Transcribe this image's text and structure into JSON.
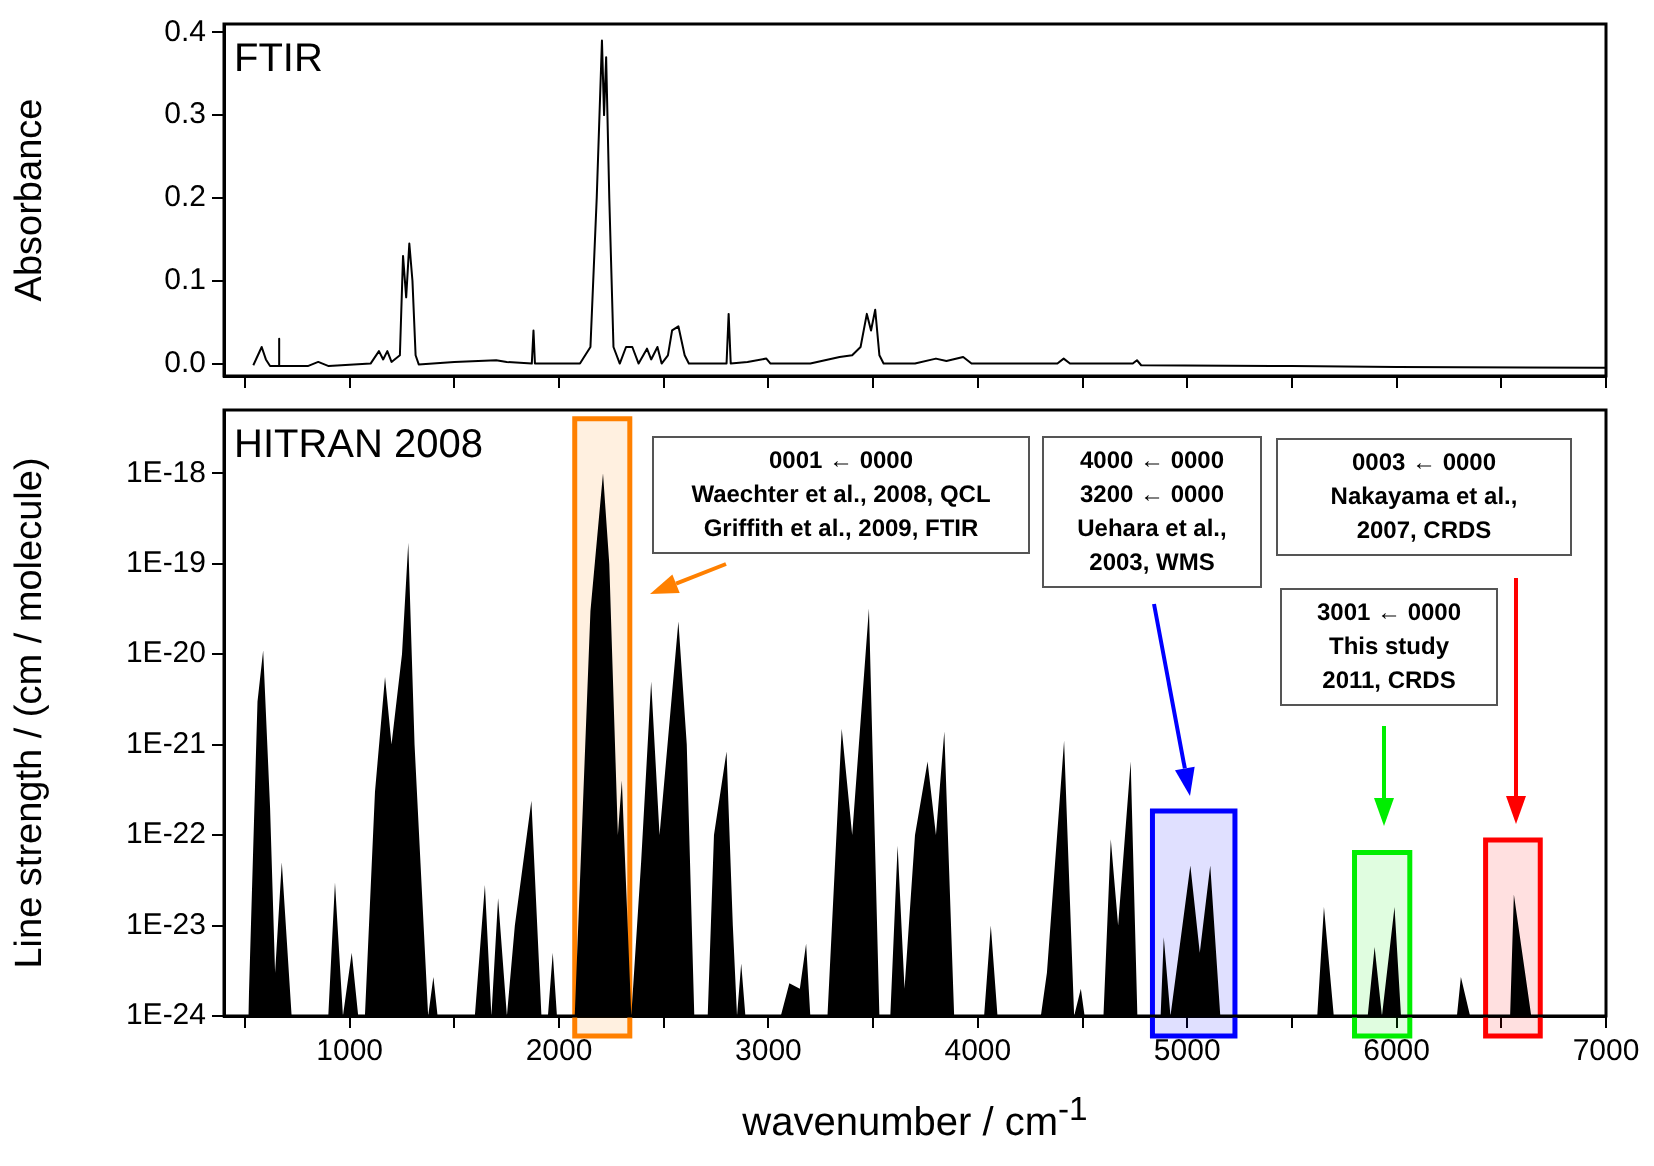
{
  "chart_data": [
    {
      "type": "line",
      "title": "FTIR",
      "ylabel": "Absorbance",
      "color": "#000000",
      "tick_labels": "y",
      "xlim": [
        400,
        7000
      ],
      "xticks": [
        {
          "value": 500,
          "label": null
        },
        1000,
        {
          "value": 1500,
          "label": null
        },
        2000,
        {
          "value": 2500,
          "label": null
        },
        3000,
        {
          "value": 3500,
          "label": null
        },
        4000,
        {
          "value": 4500,
          "label": null
        },
        5000,
        {
          "value": 5500,
          "label": null
        },
        6000,
        {
          "value": 6500,
          "label": null
        },
        7000
      ],
      "ylim": [
        -0.015,
        0.41
      ],
      "yticks": [
        {
          "value": 0,
          "label": "0.0"
        },
        0.1,
        0.2,
        0.3,
        0.4
      ],
      "x": [
        540,
        580,
        600,
        620,
        660,
        662,
        665,
        800,
        850,
        900,
        1100,
        1140,
        1160,
        1180,
        1200,
        1240,
        1255,
        1270,
        1285,
        1300,
        1315,
        1330,
        1500,
        1700,
        1750,
        1870,
        1878,
        1885,
        2100,
        2150,
        2180,
        2205,
        2215,
        2225,
        2240,
        2260,
        2290,
        2320,
        2350,
        2380,
        2420,
        2440,
        2470,
        2490,
        2520,
        2540,
        2570,
        2600,
        2620,
        2800,
        2810,
        2820,
        2900,
        2990,
        3010,
        3200,
        3340,
        3400,
        3440,
        3470,
        3490,
        3510,
        3530,
        3550,
        3700,
        3800,
        3850,
        3930,
        3970,
        4380,
        4410,
        4440,
        4740,
        4760,
        4780,
        5500,
        6000,
        7000
      ],
      "values": [
        -0.002,
        0.02,
        0.005,
        -0.003,
        -0.003,
        0.03,
        -0.003,
        -0.003,
        0.002,
        -0.003,
        0.0,
        0.015,
        0.005,
        0.015,
        0.002,
        0.01,
        0.13,
        0.08,
        0.145,
        0.1,
        0.01,
        -0.001,
        0.002,
        0.004,
        0.002,
        0.0,
        0.04,
        0.0,
        0.0,
        0.02,
        0.2,
        0.39,
        0.3,
        0.37,
        0.2,
        0.02,
        0.0,
        0.02,
        0.02,
        0.0,
        0.018,
        0.005,
        0.02,
        0.0,
        0.01,
        0.04,
        0.045,
        0.01,
        0.0,
        0.0,
        0.06,
        0.0,
        0.002,
        0.006,
        0.0,
        0.0,
        0.008,
        0.01,
        0.02,
        0.06,
        0.04,
        0.065,
        0.01,
        0.0,
        0.0,
        0.006,
        0.003,
        0.008,
        0.0,
        0.0,
        0.006,
        0.0,
        0.0,
        0.004,
        -0.002,
        -0.003,
        -0.004,
        -0.005
      ]
    },
    {
      "type": "area",
      "title": "HITRAN 2008",
      "xlabel": "wavenumber / cm$^{-1}$",
      "ylabel": "Line strength / (cm / molecule)",
      "color": "#000000",
      "log": true,
      "xlim": [
        400,
        7000
      ],
      "xticks": [
        {
          "value": 500,
          "label": null
        },
        1000,
        {
          "value": 1500,
          "label": null
        },
        2000,
        {
          "value": 2500,
          "label": null
        },
        3000,
        {
          "value": 3500,
          "label": null
        },
        4000,
        {
          "value": 4500,
          "label": null
        },
        5000,
        {
          "value": 5500,
          "label": null
        },
        6000,
        {
          "value": 6500,
          "label": null
        },
        7000
      ],
      "ylim": [
        1e-24,
        5e-18
      ],
      "yticks": [
        {
          "value": 1e-24,
          "label": "1E-24"
        },
        {
          "value": 1e-23,
          "label": "1E-23"
        },
        {
          "value": 1e-22,
          "label": "1E-22"
        },
        {
          "value": 1e-21,
          "label": "1E-21"
        },
        {
          "value": 1e-20,
          "label": "1E-20"
        },
        {
          "value": 1e-19,
          "label": "1E-19"
        },
        {
          "value": 1e-18,
          "label": "1E-18"
        }
      ],
      "x": [
        516,
        560,
        587,
        620,
        644,
        676,
        723,
        898,
        930,
        968,
        1010,
        1041,
        1073,
        1121,
        1169,
        1200,
        1250,
        1280,
        1310,
        1375,
        1400,
        1420,
        1598,
        1646,
        1677,
        1709,
        1751,
        1789,
        1868,
        1916,
        1947,
        1970,
        1990,
        2075,
        2150,
        2210,
        2240,
        2281,
        2300,
        2345,
        2392,
        2440,
        2480,
        2570,
        2610,
        2646,
        2710,
        2740,
        2800,
        2830,
        2850,
        2870,
        2890,
        3059,
        3100,
        3150,
        3180,
        3200,
        3282,
        3350,
        3400,
        3480,
        3530,
        3582,
        3617,
        3650,
        3700,
        3760,
        3800,
        3840,
        3887,
        4030,
        4062,
        4094,
        4301,
        4330,
        4412,
        4460,
        4492,
        4510,
        4600,
        4635,
        4670,
        4730,
        4762,
        4873,
        4888,
        4920,
        4960,
        5015,
        5060,
        5110,
        5158,
        5621,
        5653,
        5700,
        5862,
        5895,
        5930,
        5990,
        6021,
        6288,
        6307,
        6351,
        6542,
        6560,
        6643
      ],
      "values": [
        1e-24,
        3e-21,
        1.1e-20,
        2e-22,
        3e-24,
        5e-23,
        1e-24,
        1e-24,
        3e-23,
        1e-24,
        5e-24,
        1e-24,
        1e-24,
        3e-22,
        5.6e-21,
        1e-21,
        1e-20,
        1.7e-19,
        1e-21,
        1e-24,
        2.7e-24,
        1e-24,
        1e-24,
        2.8e-23,
        1e-24,
        2e-23,
        1e-24,
        1e-23,
        2.4e-22,
        1e-24,
        1e-24,
        5e-24,
        1e-24,
        1e-24,
        3e-20,
        1e-18,
        1e-19,
        1e-22,
        4e-22,
        1e-24,
        5e-23,
        5e-21,
        1e-22,
        2.3e-20,
        1e-21,
        1e-24,
        1e-24,
        1e-22,
        8.4e-22,
        1e-23,
        1e-24,
        3.8e-24,
        1e-24,
        1e-24,
        2.3e-24,
        2e-24,
        6.3e-24,
        1e-24,
        1e-24,
        1.5e-21,
        1e-22,
        3.2e-20,
        1e-24,
        1e-24,
        7.6e-23,
        2e-24,
        1e-22,
        6.5e-22,
        1e-22,
        1.4e-21,
        1e-24,
        1e-24,
        1e-23,
        1e-24,
        1e-24,
        3e-24,
        1.1e-21,
        1e-24,
        2e-24,
        1e-24,
        1e-24,
        9e-23,
        1e-23,
        6.5e-22,
        1e-24,
        1e-24,
        7.4e-24,
        1e-24,
        5e-24,
        4.6e-23,
        5e-24,
        4.6e-23,
        1e-24,
        1e-24,
        1.6e-23,
        1e-24,
        1e-24,
        5.8e-24,
        1e-24,
        1.6e-23,
        1e-24,
        1e-24,
        2.7e-24,
        1e-24,
        1e-24,
        2.2e-23,
        1e-24
      ],
      "bands": [
        {
          "axis": "x",
          "from": 2075,
          "to": 2338,
          "color": "#ff8000"
        },
        {
          "axis": "x",
          "from": 4834,
          "to": 5228,
          "color": "#0000ff"
        },
        {
          "axis": "x",
          "from": 6425,
          "to": 6686,
          "color": "#ff0000"
        },
        {
          "axis": "x",
          "from": 5799,
          "to": 6063,
          "color": "#00ee00"
        }
      ],
      "annotations": [
        "0001 ← 0000\nWaechter et al., 2008, QCL\nGriffith et al., 2009, FTIR",
        "4000 ← 0000\n3200 ← 0000\nUehara et al.,\n2003, WMS",
        "0003 ← 0000\nNakayama et al.,\n2007, CRDS",
        "3001 ← 0000\nThis study\n2011, CRDS"
      ]
    }
  ]
}
